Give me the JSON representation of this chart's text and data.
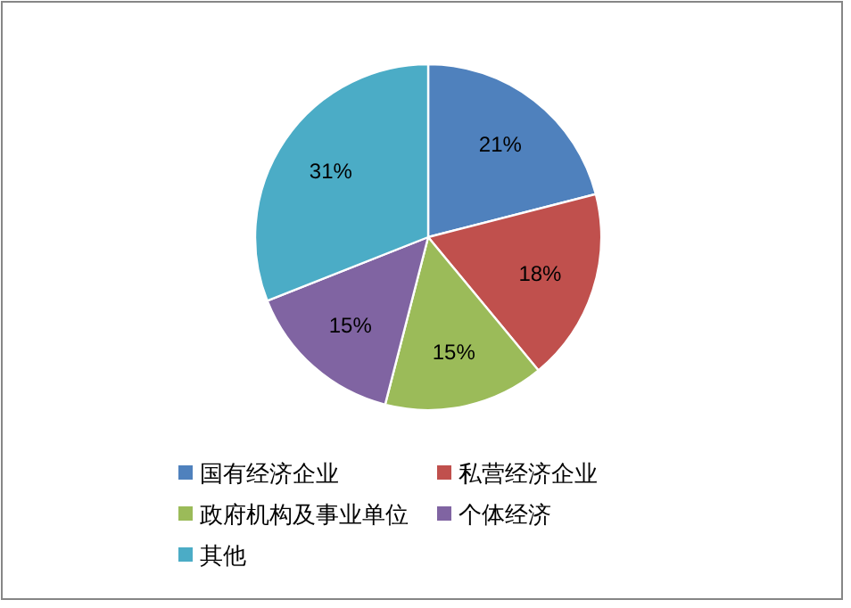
{
  "chart_data": {
    "type": "pie",
    "categories": [
      "国有经济企业",
      "私营经济企业",
      "政府机构及事业单位",
      "个体经济",
      "其他"
    ],
    "values": [
      21,
      18,
      15,
      15,
      31
    ],
    "colors": [
      "#4f81bd",
      "#c0504d",
      "#9bbb59",
      "#8064a2",
      "#4bacc6"
    ],
    "value_labels": [
      "21%",
      "18%",
      "15%",
      "15%",
      "31%"
    ],
    "legend": "bottom"
  }
}
